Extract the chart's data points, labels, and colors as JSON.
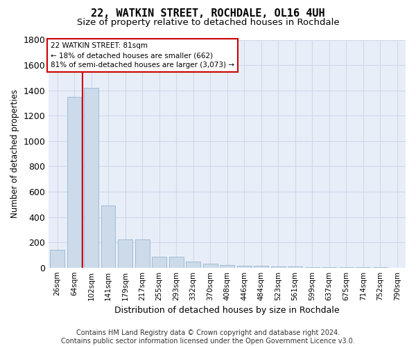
{
  "title": "22, WATKIN STREET, ROCHDALE, OL16 4UH",
  "subtitle": "Size of property relative to detached houses in Rochdale",
  "xlabel": "Distribution of detached houses by size in Rochdale",
  "ylabel": "Number of detached properties",
  "bar_color": "#ccdaea",
  "bar_edge_color": "#a0bcd4",
  "background_color": "#e8eef8",
  "grid_color": "#d0d8e8",
  "categories": [
    "26sqm",
    "64sqm",
    "102sqm",
    "141sqm",
    "179sqm",
    "217sqm",
    "255sqm",
    "293sqm",
    "332sqm",
    "370sqm",
    "408sqm",
    "446sqm",
    "484sqm",
    "523sqm",
    "561sqm",
    "599sqm",
    "637sqm",
    "675sqm",
    "714sqm",
    "752sqm",
    "790sqm"
  ],
  "bar_values": [
    140,
    1350,
    1420,
    490,
    225,
    225,
    85,
    85,
    45,
    30,
    20,
    15,
    15,
    10,
    10,
    5,
    5,
    5,
    5,
    5,
    0
  ],
  "property_line_x": 1.48,
  "property_line_color": "#cc0000",
  "annotation_line1": "22 WATKIN STREET: 81sqm",
  "annotation_line2": "← 18% of detached houses are smaller (662)",
  "annotation_line3": "81% of semi-detached houses are larger (3,073) →",
  "annotation_box_color": "white",
  "annotation_box_edge_color": "#cc0000",
  "ylim": [
    0,
    1800
  ],
  "yticks": [
    0,
    200,
    400,
    600,
    800,
    1000,
    1200,
    1400,
    1600,
    1800
  ],
  "footnote": "Contains HM Land Registry data © Crown copyright and database right 2024.\nContains public sector information licensed under the Open Government Licence v3.0."
}
